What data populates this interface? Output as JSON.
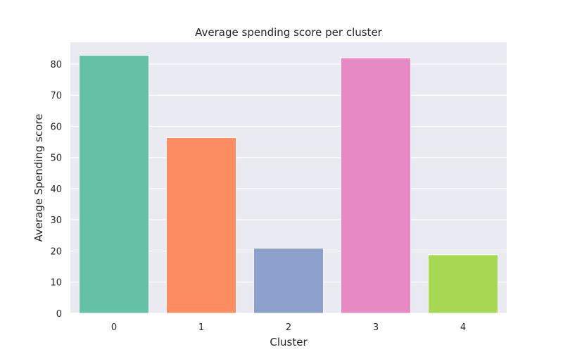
{
  "chart_data": {
    "type": "bar",
    "title": "Average spending score per cluster",
    "xlabel": "Cluster",
    "ylabel": "Average Spending score",
    "categories": [
      "0",
      "1",
      "2",
      "3",
      "4"
    ],
    "values": [
      82.8,
      56.4,
      20.9,
      82.0,
      18.8
    ],
    "colors": [
      "#66c2a5",
      "#fc8d62",
      "#8da0cb",
      "#e78ac3",
      "#a6d854"
    ],
    "ylim": [
      0,
      87
    ],
    "yticks": [
      0,
      10,
      20,
      30,
      40,
      50,
      60,
      70,
      80
    ],
    "grid": true,
    "background": "#eaeaf2",
    "grid_color": "#ffffff"
  }
}
